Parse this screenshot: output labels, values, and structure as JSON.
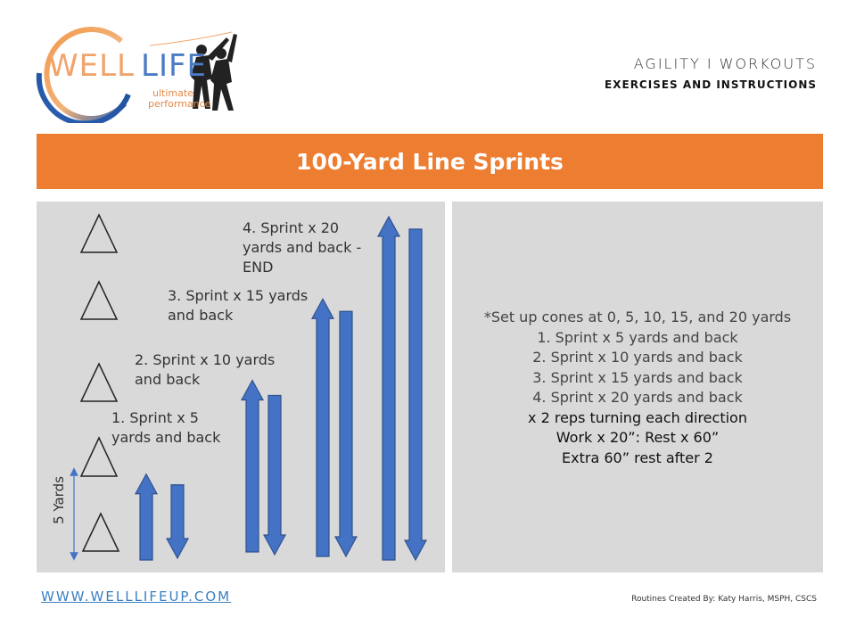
{
  "logo": {
    "well": "WELL",
    "life": "LIFE",
    "tag_line1": "ultimate",
    "tag_line2": "performance"
  },
  "header": {
    "category": "AGILITY I WORKOUTS",
    "subtitle": "EXERCISES AND INSTRUCTIONS"
  },
  "title": "100-Yard Line Sprints",
  "diagram": {
    "distance_label": "5 Yards",
    "steps": [
      {
        "lines": [
          "1. Sprint x 5",
          "yards and back"
        ],
        "yards": 5
      },
      {
        "lines": [
          "2. Sprint x 10 yards",
          "and back"
        ],
        "yards": 10
      },
      {
        "lines": [
          "3. Sprint x 15 yards",
          "and back"
        ],
        "yards": 15
      },
      {
        "lines": [
          "4. Sprint x 20",
          "yards and back -",
          "END"
        ],
        "yards": 20
      }
    ]
  },
  "instructions": [
    "*Set up cones at 0, 5, 10, 15, and 20 yards",
    "1. Sprint x 5 yards and back",
    "2. Sprint x 10 yards and back",
    "3. Sprint x 15 yards and back",
    "4. Sprint x 20 yards and back",
    "x 2 reps turning each direction",
    "Work x 20”: Rest x 60”",
    "Extra 60” rest after 2"
  ],
  "footer": {
    "website": "WWW.WELLLIFEUP.COM",
    "credit": "Routines Created By: Katy Harris, MSPH, CSCS"
  },
  "colors": {
    "orange": "#ed7d31",
    "arrow_fill": "#4472c4",
    "arrow_stroke": "#2f528f",
    "panel": "#d9d9d9"
  }
}
